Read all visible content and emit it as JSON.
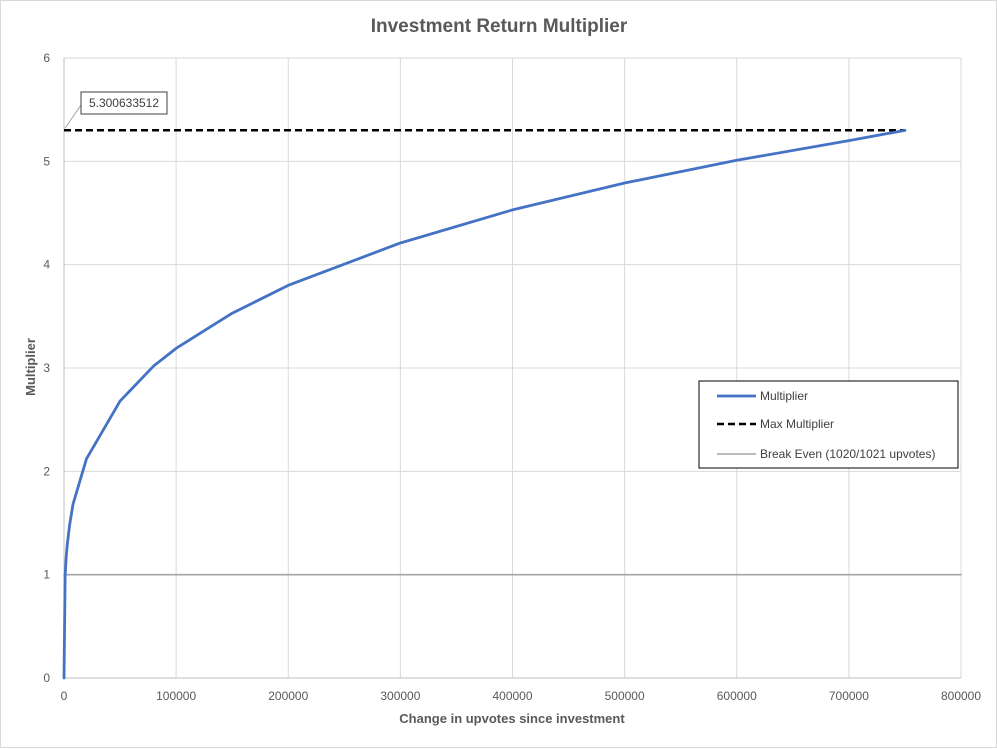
{
  "chart_data": {
    "type": "line",
    "title": "Investment Return Multiplier",
    "xlabel": "Change in upvotes since investment",
    "ylabel": "Multiplier",
    "xlim": [
      0,
      800000
    ],
    "ylim": [
      0,
      6
    ],
    "x_ticks": [
      "0",
      "100000",
      "200000",
      "300000",
      "400000",
      "500000",
      "600000",
      "700000",
      "800000"
    ],
    "y_ticks": [
      "0",
      "1",
      "2",
      "3",
      "4",
      "5",
      "6"
    ],
    "grid": true,
    "legend_position": "right",
    "series": [
      {
        "name": "Multiplier",
        "color": "#4472c4",
        "style": "solid",
        "x": [
          0,
          1000,
          2000,
          3000,
          5000,
          8000,
          20000,
          50000,
          80000,
          100000,
          150000,
          200000,
          300000,
          400000,
          500000,
          600000,
          700000,
          750000
        ],
        "y": [
          0,
          0.98,
          1.18,
          1.3,
          1.48,
          1.68,
          2.12,
          2.68,
          3.02,
          3.19,
          3.53,
          3.8,
          4.21,
          4.53,
          4.79,
          5.01,
          5.2,
          5.3
        ]
      },
      {
        "name": "Max Multiplier",
        "color": "#000000",
        "style": "dashed",
        "x": [
          0,
          750000
        ],
        "y": [
          5.300633512,
          5.300633512
        ]
      },
      {
        "name": "Break Even (1020/1021 upvotes)",
        "color": "#a5a5a5",
        "style": "solid",
        "x": [
          0,
          800000
        ],
        "y": [
          1,
          1
        ]
      }
    ],
    "annotations": [
      {
        "text": "5.300633512",
        "x": 0,
        "y": 5.300633512
      }
    ]
  }
}
